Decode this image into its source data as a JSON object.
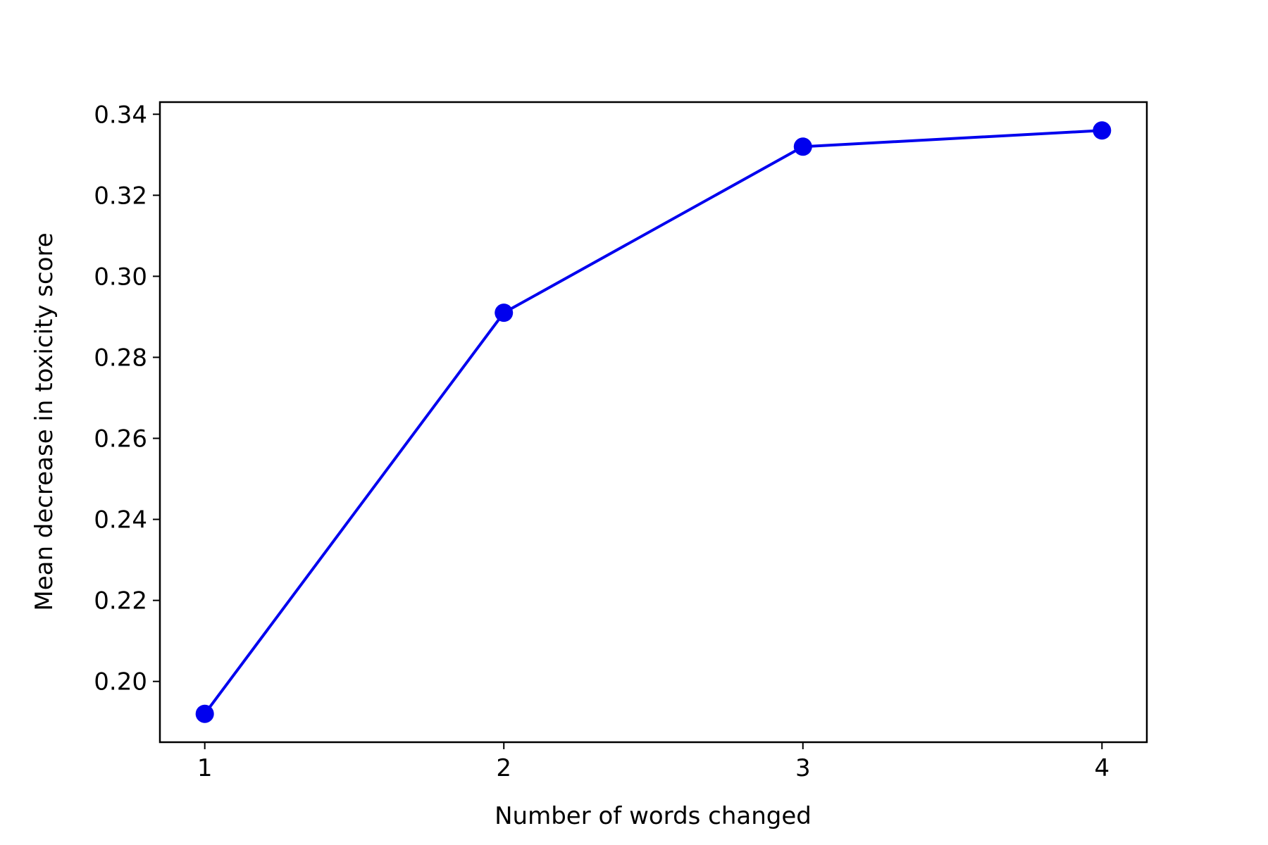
{
  "chart_data": {
    "type": "line",
    "title": "",
    "xlabel": "Number of words changed",
    "ylabel": "Mean decrease in toxicity score",
    "x": [
      1,
      2,
      3,
      4
    ],
    "series": [
      {
        "values": [
          0.192,
          0.291,
          0.332,
          0.336
        ],
        "color": "#0000ee",
        "marker": "circle"
      }
    ],
    "xlim": [
      0.85,
      4.15
    ],
    "ylim": [
      0.185,
      0.343
    ],
    "x_ticks": [
      1,
      2,
      3,
      4
    ],
    "x_tick_labels": [
      "1",
      "2",
      "3",
      "4"
    ],
    "y_ticks": [
      0.2,
      0.22,
      0.24,
      0.26,
      0.28,
      0.3,
      0.32,
      0.34
    ],
    "y_tick_labels": [
      "0.20",
      "0.22",
      "0.24",
      "0.26",
      "0.28",
      "0.30",
      "0.32",
      "0.34"
    ],
    "grid": false,
    "legend": "none"
  }
}
